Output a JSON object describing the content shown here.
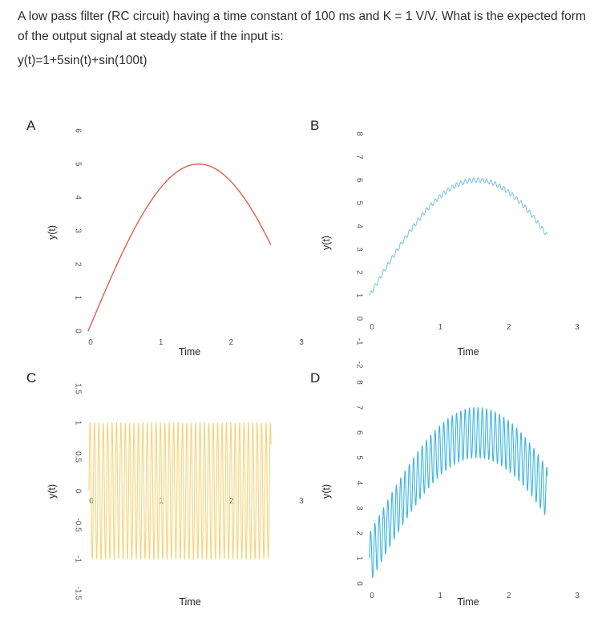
{
  "question": {
    "text": "A low pass filter (RC circuit) having a time constant of 100 ms and K = 1 V/V. What is the expected form of the output signal at steady state if the input is:",
    "equation": "y(t)=1+5sin(t)+sin(100t)"
  },
  "options": [
    {
      "letter": "A",
      "ylabel": "y(t)",
      "xlabel": "Time",
      "xticks": [
        "0",
        "1",
        "2",
        "3"
      ],
      "yticks": [
        "0",
        "1",
        "2",
        "3",
        "4",
        "5",
        "6"
      ],
      "color": "#e0604a"
    },
    {
      "letter": "B",
      "ylabel": "y(t)",
      "xlabel": "Time",
      "xticks": [
        "0",
        "1",
        "2",
        "3"
      ],
      "yticks": [
        "-2",
        "-1",
        "0",
        "1",
        "2",
        "3",
        "4",
        "5",
        "6",
        "7",
        "8"
      ],
      "color": "#7fc4e6"
    },
    {
      "letter": "C",
      "ylabel": "y(t)",
      "xlabel": "Time",
      "xticks": [
        "0",
        "1",
        "2",
        "3"
      ],
      "yticks": [
        "-1.5",
        "-1",
        "-0.5",
        "0",
        "0.5",
        "1",
        "1.5"
      ],
      "color": "#f5d37a"
    },
    {
      "letter": "D",
      "ylabel": "y(t)",
      "xlabel": "Time",
      "xticks": [
        "0",
        "1",
        "2",
        "3"
      ],
      "yticks": [
        "0",
        "1",
        "2",
        "3",
        "4",
        "5",
        "6",
        "7",
        "8"
      ],
      "color": "#3db4e0"
    }
  ],
  "chart_data": [
    {
      "type": "line",
      "title": "A",
      "xlabel": "Time",
      "ylabel": "y(t)",
      "xlim": [
        0,
        3
      ],
      "ylim": [
        0,
        6
      ],
      "series": [
        {
          "name": "y(t)",
          "formula": "5sin(t)",
          "x_range": [
            0,
            2.6
          ]
        }
      ]
    },
    {
      "type": "line",
      "title": "B",
      "xlabel": "Time",
      "ylabel": "y(t)",
      "xlim": [
        0,
        3
      ],
      "ylim": [
        -2,
        8
      ],
      "series": [
        {
          "name": "y(t)",
          "formula": "1+5sin(t)+0.1sin(100t)",
          "x_range": [
            0,
            2.6
          ]
        }
      ]
    },
    {
      "type": "line",
      "title": "C",
      "xlabel": "Time",
      "ylabel": "y(t)",
      "xlim": [
        0,
        3
      ],
      "ylim": [
        -1.5,
        1.5
      ],
      "series": [
        {
          "name": "y(t)",
          "formula": "sin(100t)",
          "x_range": [
            0,
            2.6
          ]
        }
      ]
    },
    {
      "type": "line",
      "title": "D",
      "xlabel": "Time",
      "ylabel": "y(t)",
      "xlim": [
        0,
        3
      ],
      "ylim": [
        0,
        8
      ],
      "series": [
        {
          "name": "y(t)",
          "formula": "1+5sin(t)+sin(100t)",
          "x_range": [
            0,
            2.6
          ]
        }
      ]
    }
  ]
}
